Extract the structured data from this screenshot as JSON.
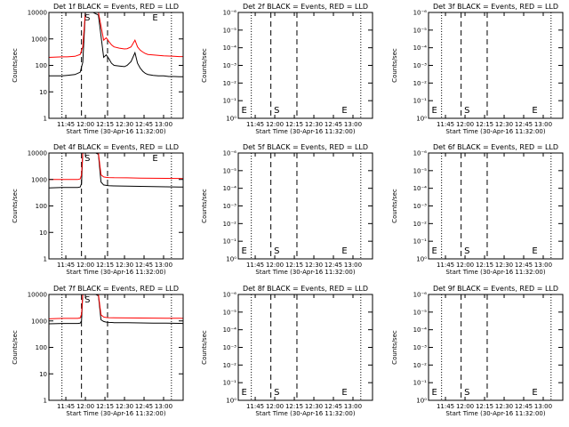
{
  "figure": {
    "background": "#ffffff",
    "series_colors": {
      "Events": "#000000",
      "LLD": "#ff0000"
    }
  },
  "chart_data": [
    {
      "type": "line",
      "panel": 1,
      "title": "Det 1f BLACK = Events, RED = LLD",
      "xlabel": "Start Time (30-Apr-16 11:32:00)",
      "ylabel": "Counts/sec",
      "x_unit": "minutes after 11:32:00",
      "xlim": [
        0,
        103
      ],
      "x_tick_values": [
        13,
        28,
        43,
        58,
        73,
        88
      ],
      "x_tick_labels": [
        "11:45",
        "12:00",
        "12:15",
        "12:30",
        "12:45",
        "13:00"
      ],
      "yscale": "log",
      "ylim": [
        1,
        10000
      ],
      "y_tick_values": [
        1,
        10,
        100,
        1000,
        10000
      ],
      "y_tick_labels": [
        "1",
        "10",
        "100",
        "1000",
        "10000"
      ],
      "dotted_lines_x": [
        10,
        94
      ],
      "dashed_lines_x": [
        25,
        45
      ],
      "markers": [
        {
          "label": "S",
          "x": 26
        },
        {
          "label": "E",
          "x": 78
        }
      ],
      "series": [
        {
          "name": "Events",
          "color": "#000000",
          "x": [
            0,
            10,
            14,
            20,
            24,
            26,
            28,
            30,
            34,
            38,
            42,
            44,
            46,
            48,
            50,
            54,
            58,
            60,
            63,
            66,
            68,
            70,
            72,
            74,
            76,
            80,
            84,
            88,
            92,
            96,
            100,
            103
          ],
          "y": [
            40,
            40,
            42,
            45,
            55,
            130,
            10000,
            10000,
            10000,
            8000,
            200,
            250,
            180,
            120,
            100,
            95,
            90,
            100,
            140,
            300,
            120,
            80,
            60,
            50,
            45,
            42,
            40,
            40,
            38,
            38,
            37,
            37
          ]
        },
        {
          "name": "LLD",
          "color": "#ff0000",
          "x": [
            0,
            10,
            14,
            20,
            24,
            26,
            28,
            30,
            34,
            38,
            42,
            44,
            46,
            48,
            50,
            54,
            58,
            60,
            63,
            66,
            68,
            70,
            72,
            74,
            76,
            80,
            84,
            88,
            92,
            96,
            100,
            103
          ],
          "y": [
            200,
            210,
            210,
            220,
            260,
            500,
            10000,
            10000,
            10000,
            10000,
            900,
            1100,
            800,
            600,
            500,
            450,
            420,
            430,
            500,
            900,
            500,
            380,
            320,
            280,
            260,
            250,
            240,
            230,
            225,
            220,
            215,
            215
          ]
        }
      ]
    },
    {
      "type": "line",
      "panel": 2,
      "title": "Det 2f BLACK = Events, RED = LLD",
      "xlabel": "Start Time (30-Apr-16 11:32:00)",
      "ylabel": "Counts/sec",
      "x_unit": "minutes after 11:32:00",
      "xlim": [
        0,
        103
      ],
      "x_tick_values": [
        13,
        28,
        43,
        58,
        73,
        88
      ],
      "x_tick_labels": [
        "11:45",
        "12:00",
        "12:15",
        "12:30",
        "12:45",
        "13:00"
      ],
      "yscale": "log",
      "ylim": [
        1,
        1e-06
      ],
      "y_tick_values": [
        1,
        0.1,
        0.01,
        0.001,
        0.0001,
        1e-05,
        1e-06
      ],
      "y_tick_labels": [
        "10⁰",
        "10⁻¹",
        "10⁻²",
        "10⁻³",
        "10⁻⁴",
        "10⁻⁵",
        "10⁻⁶"
      ],
      "dotted_lines_x": [
        10,
        94
      ],
      "dashed_lines_x": [
        25,
        45
      ],
      "markers": [
        {
          "label": "E",
          "x": 1
        },
        {
          "label": "S",
          "x": 26
        },
        {
          "label": "E",
          "x": 78
        }
      ],
      "series": []
    },
    {
      "type": "line",
      "panel": 3,
      "title": "Det 3f BLACK = Events, RED = LLD",
      "xlabel": "Start Time (30-Apr-16 11:32:00)",
      "ylabel": "Counts/sec",
      "x_unit": "minutes after 11:32:00",
      "xlim": [
        0,
        103
      ],
      "x_tick_values": [
        13,
        28,
        43,
        58,
        73,
        88
      ],
      "x_tick_labels": [
        "11:45",
        "12:00",
        "12:15",
        "12:30",
        "12:45",
        "13:00"
      ],
      "yscale": "log",
      "ylim": [
        1,
        1e-06
      ],
      "y_tick_values": [
        1,
        0.1,
        0.01,
        0.001,
        0.0001,
        1e-05,
        1e-06
      ],
      "y_tick_labels": [
        "10⁰",
        "10⁻¹",
        "10⁻²",
        "10⁻³",
        "10⁻⁴",
        "10⁻⁵",
        "10⁻⁶"
      ],
      "dotted_lines_x": [
        10,
        94
      ],
      "dashed_lines_x": [
        25,
        45
      ],
      "markers": [
        {
          "label": "E",
          "x": 1
        },
        {
          "label": "S",
          "x": 26
        },
        {
          "label": "E",
          "x": 78
        }
      ],
      "series": []
    },
    {
      "type": "line",
      "panel": 4,
      "title": "Det 4f BLACK = Events, RED = LLD",
      "xlabel": "Start Time (30-Apr-16 11:32:00)",
      "ylabel": "Counts/sec",
      "x_unit": "minutes after 11:32:00",
      "xlim": [
        0,
        103
      ],
      "x_tick_values": [
        13,
        28,
        43,
        58,
        73,
        88
      ],
      "x_tick_labels": [
        "11:45",
        "12:00",
        "12:15",
        "12:30",
        "12:45",
        "13:00"
      ],
      "yscale": "log",
      "ylim": [
        1,
        10000
      ],
      "y_tick_values": [
        1,
        10,
        100,
        1000,
        10000
      ],
      "y_tick_labels": [
        "1",
        "10",
        "100",
        "1000",
        "10000"
      ],
      "dotted_lines_x": [
        10,
        94
      ],
      "dashed_lines_x": [
        25,
        45
      ],
      "markers": [
        {
          "label": "S",
          "x": 26
        },
        {
          "label": "E",
          "x": 78
        }
      ],
      "series": [
        {
          "name": "Events",
          "color": "#000000",
          "x": [
            0,
            10,
            16,
            22,
            24,
            25,
            26,
            28,
            32,
            36,
            38,
            40,
            42,
            44,
            46,
            50,
            60,
            70,
            80,
            90,
            100,
            103
          ],
          "y": [
            480,
            500,
            500,
            500,
            520,
            700,
            10000,
            10000,
            10000,
            10000,
            9000,
            800,
            620,
            600,
            580,
            570,
            560,
            550,
            540,
            530,
            520,
            520
          ]
        },
        {
          "name": "LLD",
          "color": "#ff0000",
          "x": [
            0,
            10,
            16,
            22,
            24,
            25,
            26,
            28,
            32,
            36,
            38,
            40,
            42,
            44,
            46,
            50,
            60,
            70,
            80,
            90,
            100,
            103
          ],
          "y": [
            1000,
            1000,
            1000,
            1000,
            1050,
            1500,
            10000,
            10000,
            10000,
            10000,
            10000,
            1500,
            1250,
            1200,
            1180,
            1160,
            1150,
            1130,
            1110,
            1100,
            1090,
            1080
          ]
        }
      ]
    },
    {
      "type": "line",
      "panel": 5,
      "title": "Det 5f BLACK = Events, RED = LLD",
      "xlabel": "Start Time (30-Apr-16 11:32:00)",
      "ylabel": "Counts/sec",
      "x_unit": "minutes after 11:32:00",
      "xlim": [
        0,
        103
      ],
      "x_tick_values": [
        13,
        28,
        43,
        58,
        73,
        88
      ],
      "x_tick_labels": [
        "11:45",
        "12:00",
        "12:15",
        "12:30",
        "12:45",
        "13:00"
      ],
      "yscale": "log",
      "ylim": [
        1,
        1e-06
      ],
      "y_tick_values": [
        1,
        0.1,
        0.01,
        0.001,
        0.0001,
        1e-05,
        1e-06
      ],
      "y_tick_labels": [
        "10⁰",
        "10⁻¹",
        "10⁻²",
        "10⁻³",
        "10⁻⁴",
        "10⁻⁵",
        "10⁻⁶"
      ],
      "dotted_lines_x": [
        10,
        94
      ],
      "dashed_lines_x": [
        25,
        45
      ],
      "markers": [
        {
          "label": "E",
          "x": 1
        },
        {
          "label": "S",
          "x": 26
        },
        {
          "label": "E",
          "x": 78
        }
      ],
      "series": []
    },
    {
      "type": "line",
      "panel": 6,
      "title": "Det 6f BLACK = Events, RED = LLD",
      "xlabel": "Start Time (30-Apr-16 11:32:00)",
      "ylabel": "Counts/sec",
      "x_unit": "minutes after 11:32:00",
      "xlim": [
        0,
        103
      ],
      "x_tick_values": [
        13,
        28,
        43,
        58,
        73,
        88
      ],
      "x_tick_labels": [
        "11:45",
        "12:00",
        "12:15",
        "12:30",
        "12:45",
        "13:00"
      ],
      "yscale": "log",
      "ylim": [
        1,
        1e-06
      ],
      "y_tick_values": [
        1,
        0.1,
        0.01,
        0.001,
        0.0001,
        1e-05,
        1e-06
      ],
      "y_tick_labels": [
        "10⁰",
        "10⁻¹",
        "10⁻²",
        "10⁻³",
        "10⁻⁴",
        "10⁻⁵",
        "10⁻⁶"
      ],
      "dotted_lines_x": [
        10,
        94
      ],
      "dashed_lines_x": [
        25,
        45
      ],
      "markers": [
        {
          "label": "E",
          "x": 1
        },
        {
          "label": "S",
          "x": 26
        },
        {
          "label": "E",
          "x": 78
        }
      ],
      "series": []
    },
    {
      "type": "line",
      "panel": 7,
      "title": "Det 7f BLACK = Events, RED = LLD",
      "xlabel": "Start Time (30-Apr-16 11:32:00)",
      "ylabel": "Counts/sec",
      "x_unit": "minutes after 11:32:00",
      "xlim": [
        0,
        103
      ],
      "x_tick_values": [
        13,
        28,
        43,
        58,
        73,
        88
      ],
      "x_tick_labels": [
        "11:45",
        "12:00",
        "12:15",
        "12:30",
        "12:45",
        "13:00"
      ],
      "yscale": "log",
      "ylim": [
        1,
        10000
      ],
      "y_tick_values": [
        1,
        10,
        100,
        1000,
        10000
      ],
      "y_tick_labels": [
        "1",
        "10",
        "100",
        "1000",
        "10000"
      ],
      "dotted_lines_x": [
        10,
        94
      ],
      "dashed_lines_x": [
        25,
        45
      ],
      "markers": [
        {
          "label": "S",
          "x": 26
        }
      ],
      "series": [
        {
          "name": "Events",
          "color": "#000000",
          "x": [
            0,
            10,
            16,
            22,
            24,
            25,
            26,
            28,
            32,
            36,
            38,
            40,
            42,
            44,
            46,
            50,
            60,
            70,
            80,
            90,
            100,
            103
          ],
          "y": [
            780,
            800,
            800,
            800,
            820,
            1000,
            10000,
            10000,
            10000,
            10000,
            9000,
            1100,
            950,
            900,
            880,
            860,
            850,
            840,
            830,
            820,
            810,
            800
          ]
        },
        {
          "name": "LLD",
          "color": "#ff0000",
          "x": [
            0,
            10,
            16,
            22,
            24,
            25,
            26,
            28,
            32,
            36,
            38,
            40,
            42,
            44,
            46,
            50,
            60,
            70,
            80,
            90,
            100,
            103
          ],
          "y": [
            1200,
            1250,
            1250,
            1250,
            1300,
            1800,
            10000,
            10000,
            10000,
            10000,
            10000,
            1700,
            1400,
            1350,
            1330,
            1320,
            1300,
            1290,
            1280,
            1270,
            1260,
            1250
          ]
        }
      ]
    },
    {
      "type": "line",
      "panel": 8,
      "title": "Det 8f BLACK = Events, RED = LLD",
      "xlabel": "Start Time (30-Apr-16 11:32:00)",
      "ylabel": "Counts/sec",
      "x_unit": "minutes after 11:32:00",
      "xlim": [
        0,
        103
      ],
      "x_tick_values": [
        13,
        28,
        43,
        58,
        73,
        88
      ],
      "x_tick_labels": [
        "11:45",
        "12:00",
        "12:15",
        "12:30",
        "12:45",
        "13:00"
      ],
      "yscale": "log",
      "ylim": [
        1,
        1e-06
      ],
      "y_tick_values": [
        1,
        0.1,
        0.01,
        0.001,
        0.0001,
        1e-05,
        1e-06
      ],
      "y_tick_labels": [
        "10⁰",
        "10⁻¹",
        "10⁻²",
        "10⁻³",
        "10⁻⁴",
        "10⁻⁵",
        "10⁻⁶"
      ],
      "dotted_lines_x": [
        10,
        94
      ],
      "dashed_lines_x": [
        25,
        45
      ],
      "markers": [
        {
          "label": "E",
          "x": 1
        },
        {
          "label": "S",
          "x": 26
        },
        {
          "label": "E",
          "x": 78
        }
      ],
      "series": []
    },
    {
      "type": "line",
      "panel": 9,
      "title": "Det 9f BLACK = Events, RED = LLD",
      "xlabel": "Start Time (30-Apr-16 11:32:00)",
      "ylabel": "Counts/sec",
      "x_unit": "minutes after 11:32:00",
      "xlim": [
        0,
        103
      ],
      "x_tick_values": [
        13,
        28,
        43,
        58,
        73,
        88
      ],
      "x_tick_labels": [
        "11:45",
        "12:00",
        "12:15",
        "12:30",
        "12:45",
        "13:00"
      ],
      "yscale": "log",
      "ylim": [
        1,
        1e-06
      ],
      "y_tick_values": [
        1,
        0.1,
        0.01,
        0.001,
        0.0001,
        1e-05,
        1e-06
      ],
      "y_tick_labels": [
        "10⁰",
        "10⁻¹",
        "10⁻²",
        "10⁻³",
        "10⁻⁴",
        "10⁻⁵",
        "10⁻⁶"
      ],
      "dotted_lines_x": [
        10,
        94
      ],
      "dashed_lines_x": [
        25,
        45
      ],
      "markers": [
        {
          "label": "E",
          "x": 1
        },
        {
          "label": "S",
          "x": 26
        },
        {
          "label": "E",
          "x": 78
        }
      ],
      "series": []
    }
  ]
}
